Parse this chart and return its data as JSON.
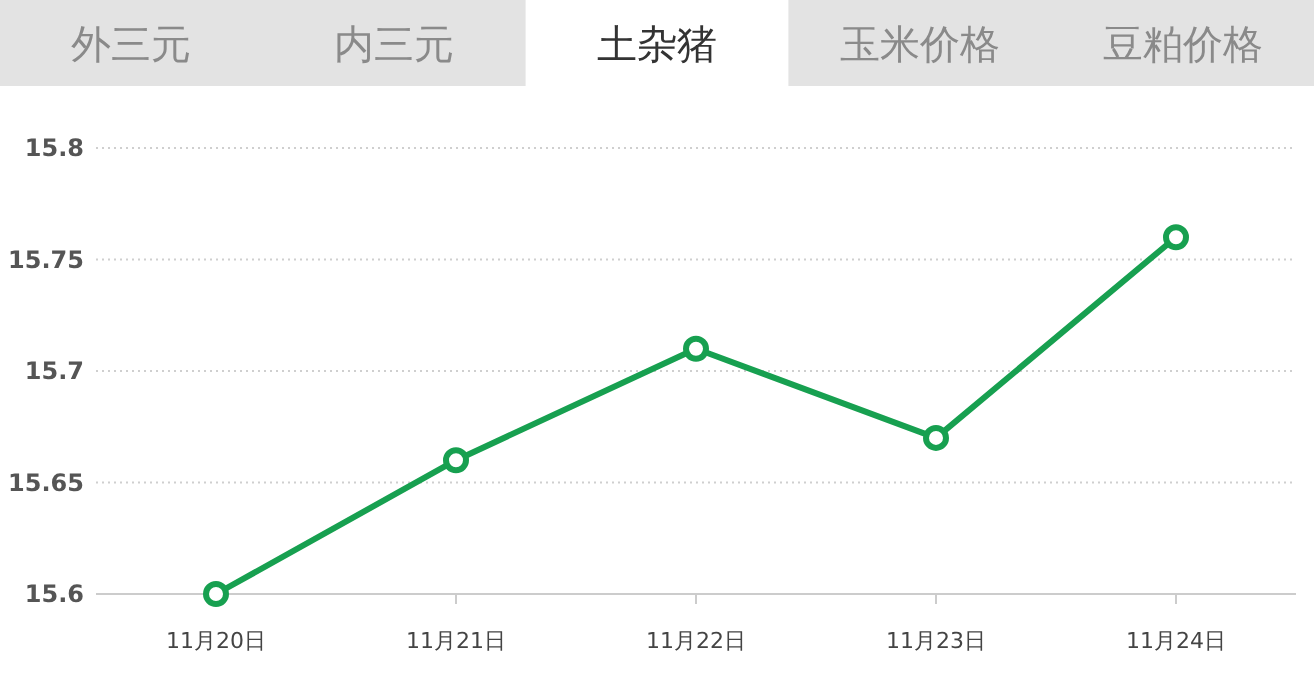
{
  "chart_data": {
    "type": "line",
    "title": "土杂猪",
    "annotations": [
      "外三元",
      "内三元",
      "玉米价格",
      "豆粕价格"
    ],
    "categories": [
      "11月20日",
      "11月21日",
      "11月22日",
      "11月23日",
      "11月24日"
    ],
    "values": [
      15.6,
      15.66,
      15.71,
      15.67,
      15.76
    ],
    "color": "#17a050",
    "marker": "circle",
    "grid": "y",
    "ylim": [
      15.6,
      15.8
    ],
    "yticks": [
      15.6,
      15.65,
      15.7,
      15.75,
      15.8
    ]
  }
}
